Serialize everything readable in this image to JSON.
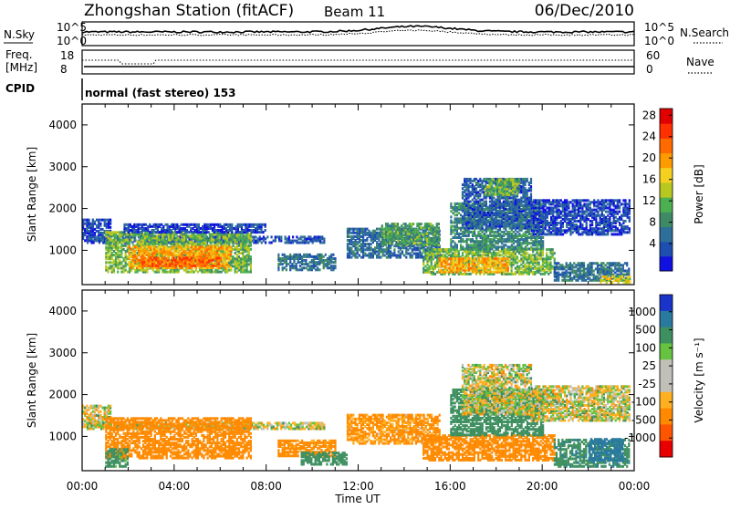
{
  "header": {
    "station": "Zhongshan Station (fitACF)",
    "beam": "Beam 11",
    "date": "06/Dec/2010"
  },
  "sky_panel": {
    "left_label": "N.Sky",
    "right_label": "N.Search",
    "left_ticks": [
      "10^5",
      "10^0"
    ],
    "right_ticks": [
      "10^5",
      "10^0"
    ]
  },
  "freq_panel": {
    "left_label_1": "Freq.",
    "left_label_2": "[MHz]",
    "left_ticks": [
      "18",
      "8"
    ],
    "right_ticks": [
      "60",
      "0"
    ],
    "right_label": "Nave"
  },
  "cpid": {
    "label": "CPID",
    "mode": "normal (fast stereo) 153"
  },
  "chart_data": [
    {
      "type": "heatmap",
      "title": "",
      "ylabel": "Slant Range [km]",
      "ylim": [
        180,
        4500
      ],
      "yticks": [
        "1000",
        "2000",
        "3000",
        "4000"
      ],
      "xticks": [
        "00:00",
        "04:00",
        "08:00",
        "12:00",
        "16:00",
        "20:00",
        "00:00"
      ],
      "colorbar_label": "Power [dB]",
      "colorbar_ticks": [
        "4",
        "8",
        "12",
        "16",
        "20",
        "24",
        "28"
      ],
      "colorbar_colors": [
        "#1010e0",
        "#1e4fb0",
        "#2e6f9a",
        "#3f8a66",
        "#4caf50",
        "#b8c820",
        "#f5d020",
        "#ff9a00",
        "#ff6a00",
        "#ff3000",
        "#e00000"
      ],
      "echo_regions": [
        {
          "t0": 0.0,
          "t1": 1.2,
          "r0": 1200,
          "r1": 1700,
          "v": 6
        },
        {
          "t0": 0.2,
          "t1": 10.5,
          "r0": 1150,
          "r1": 1320,
          "v": 7
        },
        {
          "t0": 1.0,
          "t1": 7.3,
          "r0": 450,
          "r1": 1400,
          "v": 16
        },
        {
          "t0": 2.0,
          "t1": 6.5,
          "r0": 550,
          "r1": 1050,
          "v": 24
        },
        {
          "t0": 2.5,
          "t1": 6.0,
          "r0": 600,
          "r1": 800,
          "v": 28
        },
        {
          "t0": 1.8,
          "t1": 8.0,
          "r0": 1400,
          "r1": 1600,
          "v": 6
        },
        {
          "t0": 8.5,
          "t1": 11.0,
          "r0": 500,
          "r1": 900,
          "v": 10
        },
        {
          "t0": 11.5,
          "t1": 15.5,
          "r0": 800,
          "r1": 1500,
          "v": 9
        },
        {
          "t0": 13.0,
          "t1": 15.5,
          "r0": 1100,
          "r1": 1600,
          "v": 14
        },
        {
          "t0": 14.8,
          "t1": 20.5,
          "r0": 400,
          "r1": 1000,
          "v": 16
        },
        {
          "t0": 15.5,
          "t1": 18.5,
          "r0": 450,
          "r1": 800,
          "v": 24
        },
        {
          "t0": 16.0,
          "t1": 20.0,
          "r0": 1000,
          "r1": 2100,
          "v": 12
        },
        {
          "t0": 16.5,
          "t1": 19.5,
          "r0": 1500,
          "r1": 2700,
          "v": 8
        },
        {
          "t0": 17.5,
          "t1": 19.0,
          "r0": 2300,
          "r1": 2700,
          "v": 16
        },
        {
          "t0": 19.5,
          "t1": 23.8,
          "r0": 1350,
          "r1": 2200,
          "v": 6
        },
        {
          "t0": 20.5,
          "t1": 23.8,
          "r0": 250,
          "r1": 700,
          "v": 10
        },
        {
          "t0": 22.5,
          "t1": 23.8,
          "r0": 200,
          "r1": 350,
          "v": 20
        }
      ]
    },
    {
      "type": "heatmap",
      "title": "",
      "ylabel": "Slant Range [km]",
      "xlabel": "Time UT",
      "ylim": [
        180,
        4500
      ],
      "yticks": [
        "1000",
        "2000",
        "3000",
        "4000"
      ],
      "xticks": [
        "00:00",
        "04:00",
        "08:00",
        "12:00",
        "16:00",
        "20:00",
        "00:00"
      ],
      "colorbar_label": "Velocity [m s⁻¹]",
      "colorbar_ticks": [
        "1000",
        "500",
        "100",
        "25",
        "-25",
        "-100",
        "-500",
        "-1000"
      ],
      "colorbar_colors": [
        "#1a33c8",
        "#2a7aa0",
        "#3f9060",
        "#66c240",
        "#c0c0b8",
        "#c0c0b8",
        "#ffb020",
        "#ff8a00",
        "#ff5500",
        "#e80000"
      ],
      "echo_regions": [
        {
          "t0": 0.0,
          "t1": 1.2,
          "r0": 1200,
          "r1": 1700,
          "v": 0
        },
        {
          "t0": 0.2,
          "t1": 10.5,
          "r0": 1150,
          "r1": 1320,
          "v": 0
        },
        {
          "t0": 1.0,
          "t1": 7.3,
          "r0": 450,
          "r1": 1400,
          "v": -300
        },
        {
          "t0": 1.0,
          "t1": 2.0,
          "r0": 250,
          "r1": 700,
          "v": 200
        },
        {
          "t0": 8.5,
          "t1": 11.0,
          "r0": 500,
          "r1": 900,
          "v": -200
        },
        {
          "t0": 9.5,
          "t1": 11.5,
          "r0": 300,
          "r1": 600,
          "v": 300
        },
        {
          "t0": 11.5,
          "t1": 15.5,
          "r0": 800,
          "r1": 1500,
          "v": -150
        },
        {
          "t0": 14.8,
          "t1": 20.5,
          "r0": 400,
          "r1": 1000,
          "v": -300
        },
        {
          "t0": 16.0,
          "t1": 20.0,
          "r0": 1000,
          "r1": 2100,
          "v": 300
        },
        {
          "t0": 16.5,
          "t1": 19.5,
          "r0": 1500,
          "r1": 2700,
          "v": 0
        },
        {
          "t0": 19.5,
          "t1": 23.8,
          "r0": 1350,
          "r1": 2200,
          "v": 0
        },
        {
          "t0": 20.5,
          "t1": 23.8,
          "r0": 250,
          "r1": 900,
          "v": 400
        },
        {
          "t0": 22.0,
          "t1": 23.5,
          "r0": 400,
          "r1": 900,
          "v": 800
        }
      ]
    }
  ]
}
